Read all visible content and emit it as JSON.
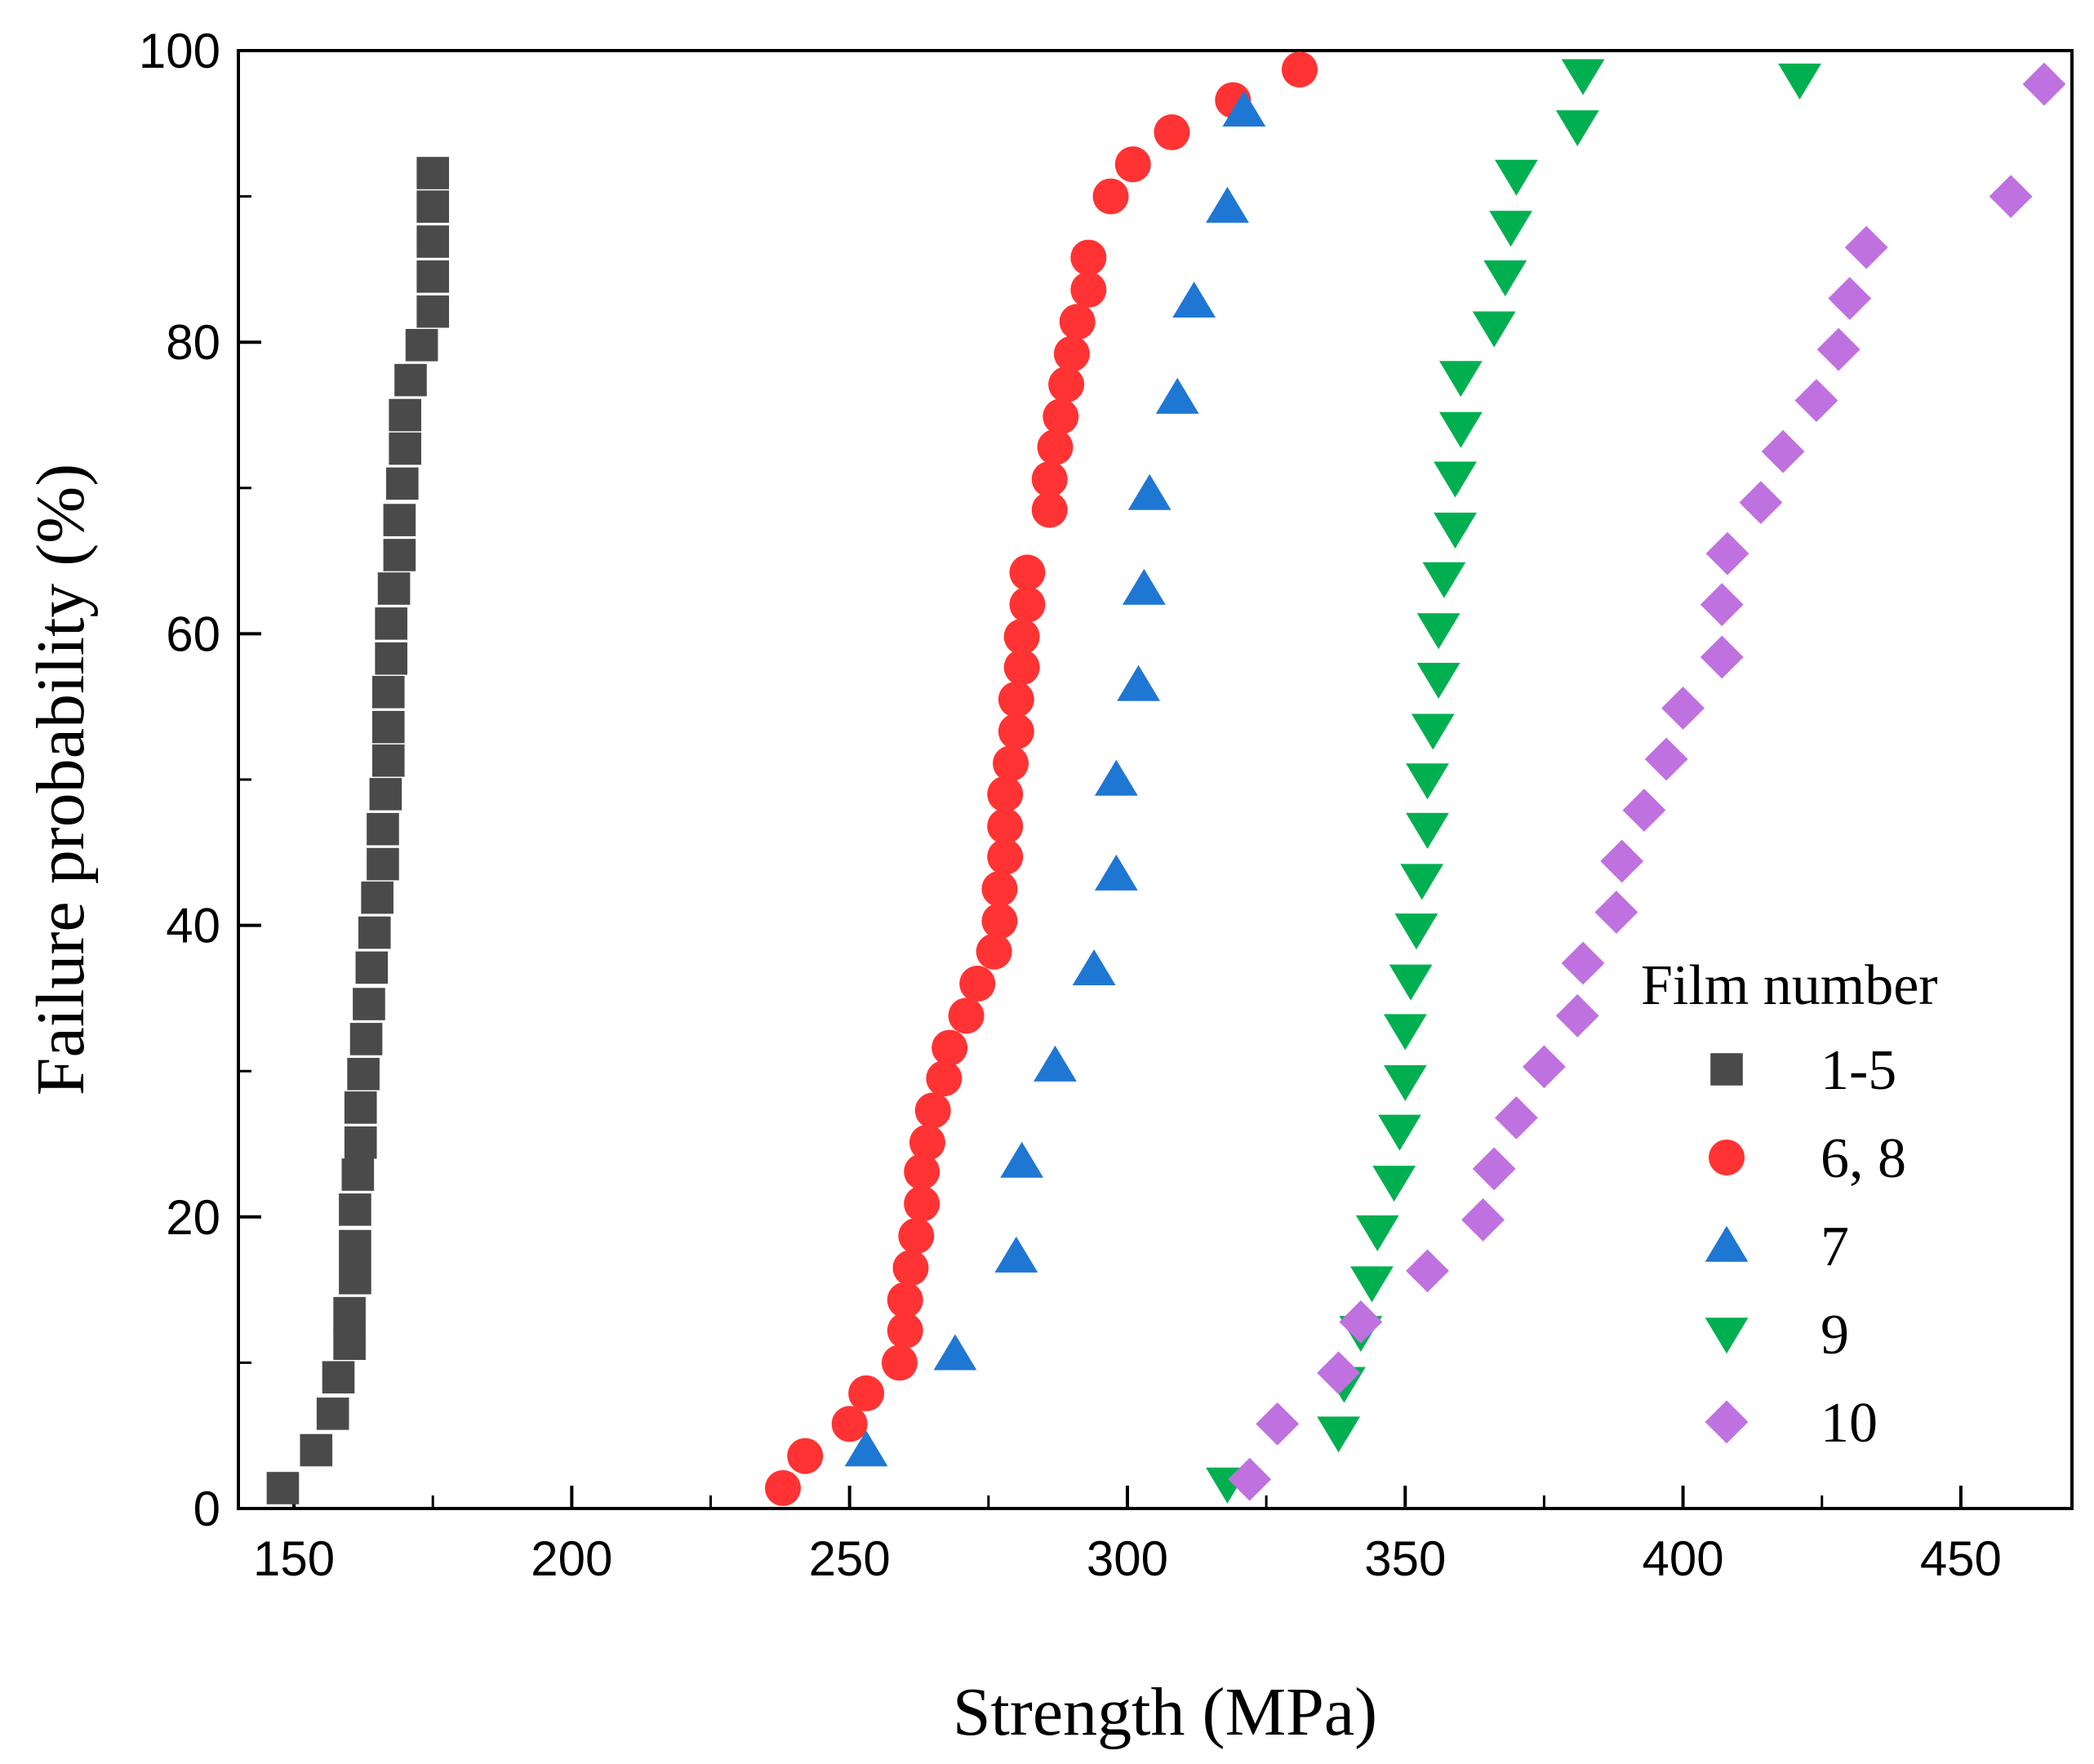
{
  "chart_data": {
    "type": "scatter",
    "title": "",
    "xlabel": "Strength (MPa)",
    "ylabel": "Failure probability (%)",
    "xlim": [
      140,
      470
    ],
    "ylim": [
      0,
      100
    ],
    "xticks": [
      150,
      200,
      250,
      300,
      350,
      400,
      450
    ],
    "yticks": [
      0,
      20,
      40,
      60,
      80,
      100
    ],
    "grid": false,
    "legend": {
      "title": "Film number",
      "position": "bottom-right"
    },
    "series": [
      {
        "name": "1-5",
        "marker": "square",
        "color": "#4a4a4a",
        "x": [
          148,
          154,
          157,
          158,
          160,
          160,
          161,
          161,
          161,
          161.5,
          162,
          162,
          162.5,
          163,
          163.5,
          164,
          164.5,
          165,
          166,
          166,
          166.5,
          167,
          167,
          167,
          167.5,
          167.5,
          168,
          169,
          169,
          169.5,
          170,
          170,
          171,
          173,
          175,
          175,
          175,
          175,
          175
        ],
        "y": [
          1.4,
          4.0,
          6.5,
          9.0,
          11.3,
          13.4,
          15.8,
          18.0,
          20.5,
          22.9,
          25.1,
          27.5,
          29.8,
          32.2,
          34.6,
          37.1,
          39.5,
          41.9,
          44.2,
          46.6,
          49.0,
          51.3,
          53.6,
          56.0,
          58.3,
          60.7,
          63.1,
          65.4,
          67.8,
          70.3,
          72.7,
          75.0,
          77.4,
          79.8,
          82.1,
          84.5,
          86.9,
          89.3,
          91.6
        ]
      },
      {
        "name": "6, 8",
        "marker": "circle",
        "color": "#ff3333",
        "x": [
          238,
          242,
          250,
          253,
          259,
          260,
          260,
          261,
          262,
          263,
          263,
          264,
          265,
          267,
          268,
          271,
          273,
          276,
          277,
          277,
          278,
          278,
          278,
          279,
          280,
          280,
          281,
          281,
          282,
          282,
          286,
          286,
          287,
          288,
          289,
          290,
          291,
          293,
          293,
          297,
          301,
          308,
          319,
          331
        ],
        "y": [
          1.4,
          3.6,
          5.8,
          7.9,
          10.0,
          12.2,
          14.3,
          16.5,
          18.7,
          20.9,
          23.1,
          25.1,
          27.3,
          29.5,
          31.6,
          33.8,
          36.0,
          38.2,
          40.3,
          42.5,
          44.7,
          46.8,
          49.0,
          51.1,
          53.3,
          55.5,
          57.7,
          59.8,
          62.0,
          64.2,
          68.5,
          70.6,
          72.8,
          74.9,
          77.1,
          79.2,
          81.4,
          83.6,
          85.8,
          90.0,
          92.2,
          94.4,
          96.6,
          98.7
        ]
      },
      {
        "name": "7",
        "marker": "triangle-up",
        "color": "#1f77d4",
        "x": [
          253,
          269,
          280,
          281,
          287,
          294,
          298,
          298,
          302,
          303,
          304,
          309,
          312,
          318,
          321
        ],
        "y": [
          4.0,
          10.6,
          17.3,
          23.8,
          30.4,
          37.0,
          43.5,
          50.0,
          56.5,
          63.1,
          69.6,
          76.2,
          82.8,
          89.3,
          95.9
        ]
      },
      {
        "name": "9",
        "marker": "triangle-down",
        "color": "#00b050",
        "x": [
          318,
          338,
          339,
          342,
          344,
          345,
          348,
          349,
          350,
          350,
          351,
          352,
          353,
          354,
          354,
          355,
          356,
          356,
          357,
          359,
          359,
          360,
          360,
          366,
          368,
          369,
          370,
          381,
          382,
          421
        ],
        "y": [
          1.7,
          5.2,
          8.6,
          12.1,
          15.5,
          19.0,
          22.4,
          25.9,
          29.3,
          32.8,
          36.2,
          39.7,
          43.1,
          46.6,
          50.0,
          53.4,
          56.9,
          60.3,
          63.8,
          67.2,
          70.7,
          74.1,
          77.6,
          81.0,
          84.5,
          87.9,
          91.4,
          94.8,
          98.3,
          98.0
        ]
      },
      {
        "name": "10",
        "marker": "diamond",
        "color": "#c071e0",
        "x": [
          322,
          327,
          338,
          342,
          354,
          364,
          366,
          370,
          375,
          381,
          382,
          388,
          389,
          393,
          397,
          400,
          407,
          407,
          408,
          414,
          418,
          424,
          428,
          430,
          433,
          459,
          465
        ],
        "y": [
          2.0,
          5.8,
          9.3,
          12.8,
          16.3,
          19.8,
          23.3,
          26.8,
          30.3,
          33.8,
          37.4,
          40.9,
          44.4,
          47.9,
          51.4,
          54.9,
          58.4,
          62.0,
          65.5,
          69.0,
          72.5,
          76.0,
          79.5,
          83.0,
          86.5,
          90.0,
          97.7
        ]
      }
    ]
  }
}
